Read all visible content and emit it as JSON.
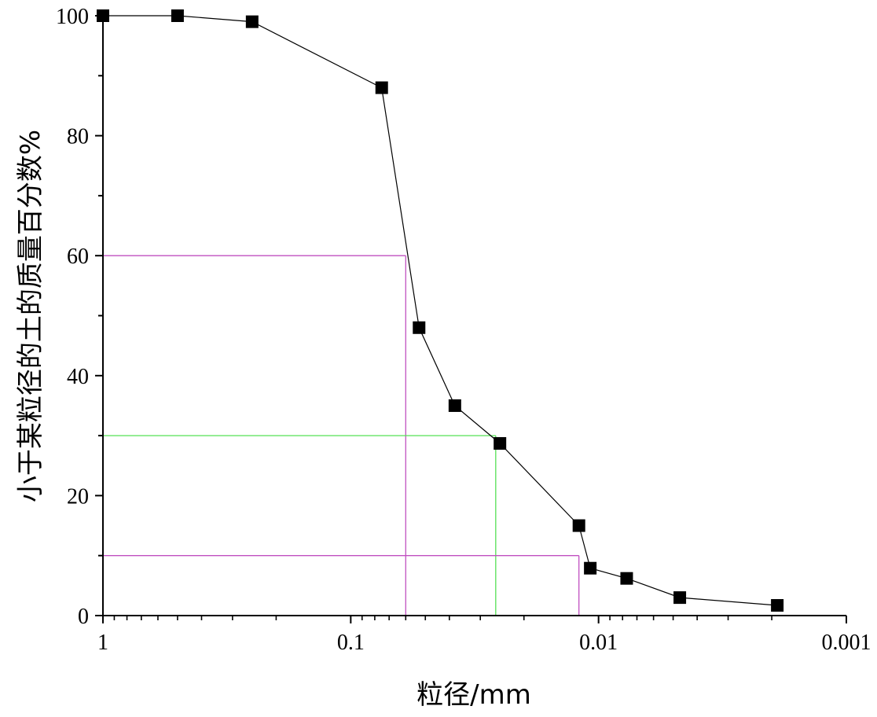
{
  "chart_data": {
    "type": "line",
    "xlabel": "粒径/mm",
    "ylabel": "小于某粒径的土的质量百分数%",
    "x_scale": "log",
    "x_reversed": true,
    "xlim": [
      1,
      0.001
    ],
    "ylim": [
      0,
      100
    ],
    "x_ticks": [
      {
        "value": 1,
        "label": "1"
      },
      {
        "value": 0.1,
        "label": "0.1"
      },
      {
        "value": 0.01,
        "label": "0.01"
      },
      {
        "value": 0.001,
        "label": "0.001"
      }
    ],
    "y_ticks": [
      {
        "value": 0,
        "label": "0"
      },
      {
        "value": 20,
        "label": "20"
      },
      {
        "value": 40,
        "label": "40"
      },
      {
        "value": 60,
        "label": "60"
      },
      {
        "value": 80,
        "label": "80"
      },
      {
        "value": 100,
        "label": "100"
      }
    ],
    "grid": false,
    "series": [
      {
        "marker": "square",
        "color": "#000000",
        "x": [
          1,
          0.5,
          0.25,
          0.075,
          0.053,
          0.038,
          0.025,
          0.012,
          0.0108,
          0.0077,
          0.0047,
          0.0019
        ],
        "y": [
          100,
          100,
          99,
          88,
          48,
          35,
          28.7,
          15,
          7.9,
          6.2,
          3,
          1.7
        ]
      }
    ],
    "reference_lines": [
      {
        "y": 60,
        "x": 0.06,
        "color": "#c050c0"
      },
      {
        "y": 30,
        "x": 0.026,
        "color": "#55e055"
      },
      {
        "y": 10,
        "x": 0.012,
        "color": "#c050c0"
      }
    ]
  }
}
